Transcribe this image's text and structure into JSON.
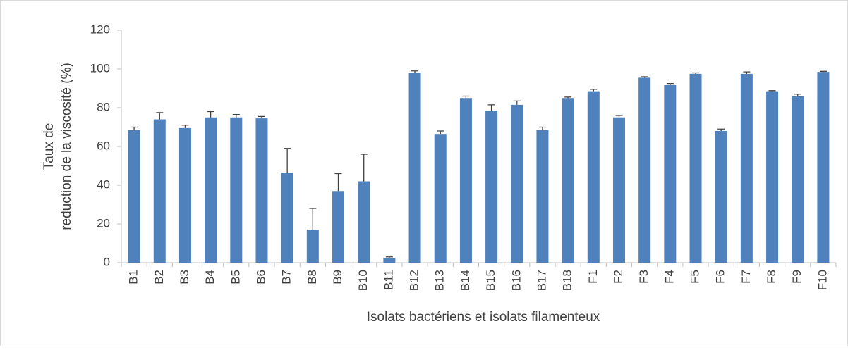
{
  "chart_data": {
    "type": "bar",
    "ylabel": [
      "Taux de",
      "reduction de la viscosité (%)"
    ],
    "xlabel": "Isolats bactériens et isolats  filamenteux",
    "categories": [
      "B1",
      "B2",
      "B3",
      "B4",
      "B5",
      "B6",
      "B7",
      "B8",
      "B9",
      "B10",
      "B11",
      "B12",
      "B13",
      "B14",
      "B15",
      "B16",
      "B17",
      "B18",
      "F1",
      "F2",
      "F3",
      "F4",
      "F5",
      "F6",
      "F7",
      "F8",
      "F9",
      "F10"
    ],
    "series": [
      {
        "color": "#4f81bd",
        "values": [
          68.5,
          74,
          69.5,
          75,
          75,
          74.5,
          46.5,
          17,
          37,
          42,
          2.5,
          98,
          66.5,
          85,
          78.5,
          81.5,
          68.5,
          85,
          88.5,
          75,
          95.5,
          92,
          97.5,
          68,
          97.5,
          88.5,
          86,
          98.5
        ],
        "errors": [
          1.5,
          3.5,
          1.5,
          3,
          1.5,
          1,
          12.5,
          11,
          9,
          14,
          0.5,
          1,
          1.5,
          1,
          3,
          2,
          1.5,
          0.5,
          1,
          1,
          0.5,
          0.5,
          0.5,
          1,
          1,
          0.3,
          1,
          0.3
        ]
      }
    ],
    "ylim": [
      0,
      120
    ],
    "yticks": [
      0,
      20,
      40,
      60,
      80,
      100,
      120
    ],
    "grid": false
  }
}
